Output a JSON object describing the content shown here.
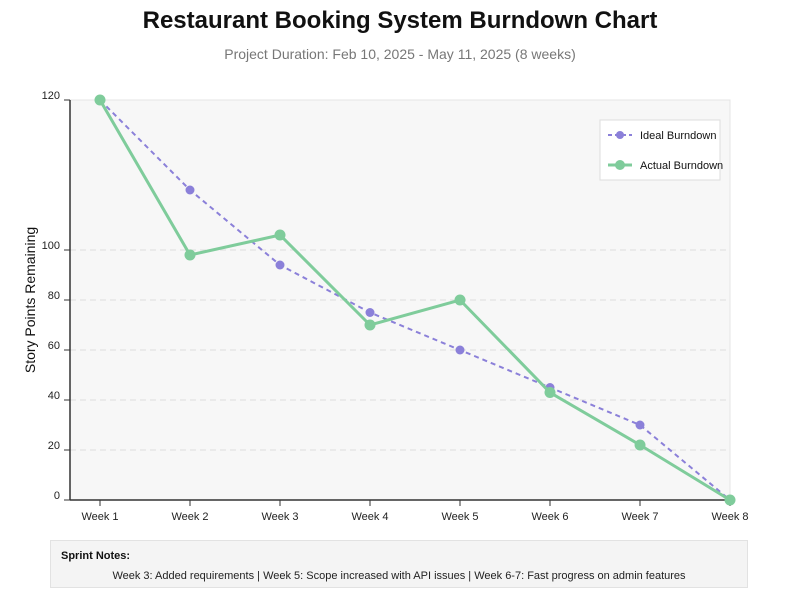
{
  "header": {
    "title": "Restaurant Booking System Burndown Chart",
    "subtitle": "Project Duration: Feb 10, 2025 - May 11, 2025 (8 weeks)"
  },
  "chart_data": {
    "type": "line",
    "title": "Restaurant Booking System Burndown Chart",
    "subtitle": "Project Duration: Feb 10, 2025 - May 11, 2025 (8 weeks)",
    "xlabel": "",
    "ylabel": "Story Points Remaining",
    "categories": [
      "Week 1",
      "Week 2",
      "Week 3",
      "Week 4",
      "Week 5",
      "Week 6",
      "Week 7",
      "Week 8"
    ],
    "y_ticks": [
      0,
      20,
      40,
      60,
      80,
      100,
      120
    ],
    "ylim": [
      0,
      120
    ],
    "scale_note": "non-linear y axis as drawn: 0-100 evenly spaced, 100-120 stretched",
    "grid": true,
    "legend_position": "top-right",
    "series": [
      {
        "name": "Ideal Burndown",
        "style": "dashed",
        "color": "#8b80d9",
        "values": [
          120,
          108,
          94,
          75,
          60,
          45,
          30,
          0
        ]
      },
      {
        "name": "Actual Burndown",
        "style": "solid",
        "color": "#7fcc9b",
        "values": [
          120,
          98,
          102,
          70,
          80,
          43,
          22,
          0
        ]
      }
    ]
  },
  "notes": {
    "heading": "Sprint Notes:",
    "text": "Week 3: Added requirements | Week 5: Scope increased with API issues | Week 6-7: Fast progress on admin features"
  }
}
